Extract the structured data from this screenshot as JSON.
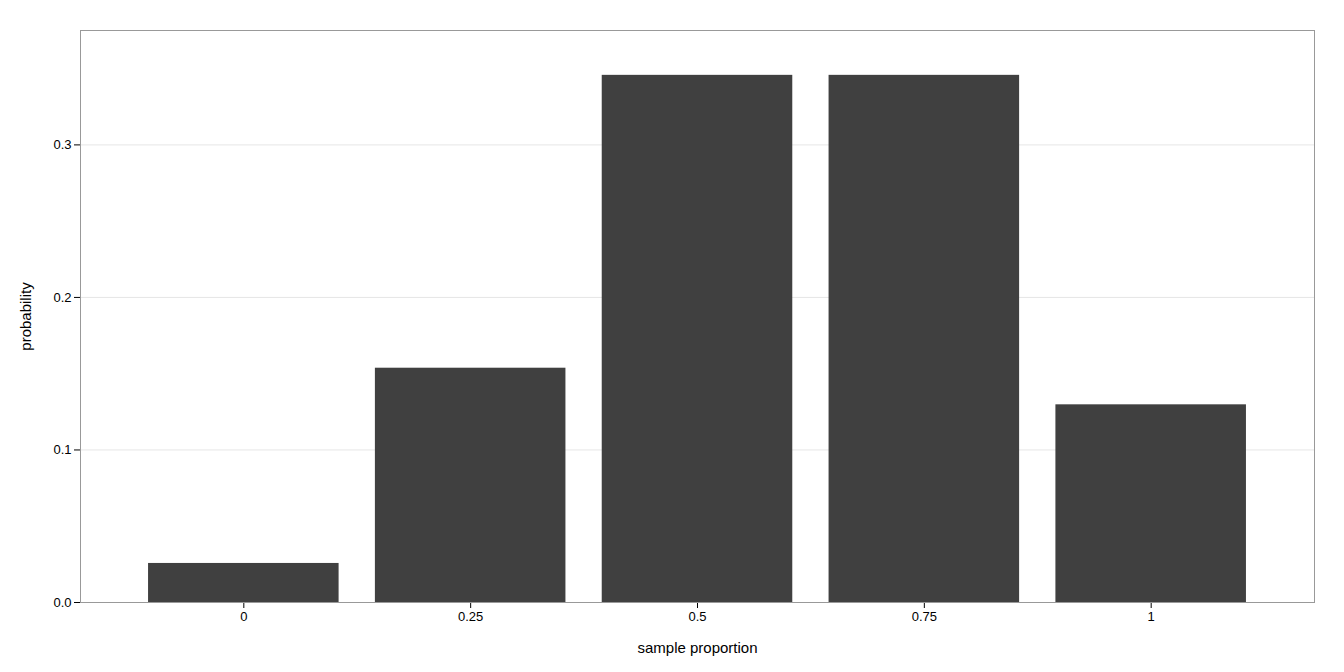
{
  "chart_data": {
    "type": "bar",
    "x": [
      0.0,
      0.25,
      0.5,
      0.75,
      1.0
    ],
    "values": [
      0.0256,
      0.1536,
      0.3456,
      0.3456,
      0.1296
    ],
    "color": "#404040",
    "xlabel": "sample proportion",
    "ylabel": "probability",
    "xlim": [
      -0.18,
      1.18
    ],
    "ylim": [
      0,
      0.375
    ],
    "xticks": [
      0,
      0.25,
      0.5,
      0.75,
      1
    ],
    "yticks": [
      {
        "value": 0,
        "label": "0.0"
      },
      0.1,
      0.2,
      0.3
    ],
    "grid": "y"
  }
}
